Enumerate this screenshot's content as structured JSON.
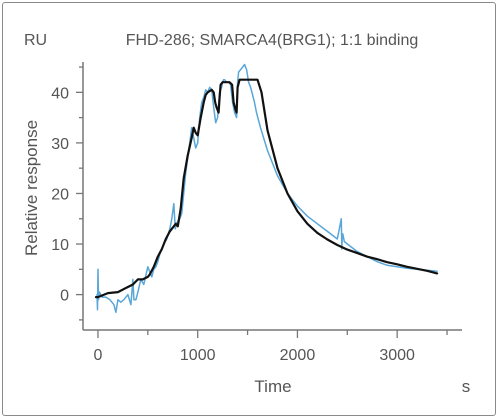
{
  "chart_data": {
    "type": "line",
    "title": "FHD-286; SMARCA4(BRG1); 1:1 binding",
    "y_unit": "RU",
    "x_unit": "s",
    "xlabel": "Time",
    "ylabel": "Relative response",
    "xlim": [
      -150,
      3650
    ],
    "ylim": [
      -7,
      46
    ],
    "x_ticks": [
      0,
      1000,
      2000,
      3000
    ],
    "y_ticks": [
      0,
      10,
      20,
      30,
      40
    ],
    "grid": false,
    "legend": "none",
    "colors": {
      "fit": "#111111",
      "measured": "#5aa6d8",
      "axis": "#777777",
      "text": "#555555"
    },
    "series": [
      {
        "style": "measured",
        "x": [
          -10,
          -5,
          0,
          5,
          15,
          40,
          80,
          120,
          160,
          180,
          200,
          230,
          260,
          300,
          330,
          350,
          360,
          380,
          400,
          430,
          460,
          500,
          540,
          560,
          580,
          600,
          620,
          640,
          660,
          690,
          720,
          740,
          760,
          775,
          785,
          800,
          820,
          840,
          860,
          880,
          900,
          920,
          940,
          960,
          980,
          1000,
          1020,
          1040,
          1060,
          1080,
          1100,
          1120,
          1140,
          1160,
          1180,
          1200,
          1220,
          1240,
          1250,
          1260,
          1270,
          1290,
          1310,
          1330,
          1350,
          1370,
          1390,
          1400,
          1410,
          1430,
          1450,
          1470,
          1490,
          1510,
          1530,
          1550,
          1570,
          1590,
          1610,
          1630,
          1700,
          1800,
          1900,
          2000,
          2100,
          2200,
          2300,
          2400,
          2440,
          2445,
          2450,
          2455,
          2470,
          2500,
          2600,
          2700,
          2800,
          2900,
          3000,
          3100,
          3200,
          3300,
          3400
        ],
        "y": [
          0,
          -3,
          5,
          -1,
          0.5,
          -0.5,
          -0.5,
          -1,
          -2,
          -3.5,
          -1,
          -1.5,
          -1,
          0,
          -2,
          3,
          -1,
          -1,
          0.5,
          3,
          2,
          5.5,
          3.5,
          5,
          5.5,
          6.5,
          8,
          9,
          10,
          11,
          13,
          15,
          18,
          13,
          14,
          14.5,
          15,
          16,
          20,
          24,
          27,
          30,
          33,
          31,
          29,
          30,
          35,
          38,
          39,
          40.5,
          40,
          41,
          40.5,
          37,
          34,
          35,
          40,
          41,
          42,
          42.5,
          42.5,
          42,
          42,
          41.5,
          38,
          36,
          35,
          42,
          44,
          44.5,
          45,
          45.5,
          44.5,
          42,
          41,
          39.5,
          38,
          36,
          34.5,
          33,
          28.5,
          23.5,
          20,
          17.5,
          15.5,
          14,
          12.5,
          11,
          15,
          9,
          11.5,
          12,
          10.5,
          10,
          8.5,
          7.5,
          6.5,
          5.8,
          5.5,
          5.2,
          5,
          4.8,
          4.6
        ]
      },
      {
        "style": "fit",
        "x": [
          -20,
          0,
          100,
          200,
          300,
          350,
          400,
          450,
          500,
          520,
          560,
          600,
          640,
          680,
          720,
          760,
          780,
          800,
          830,
          860,
          900,
          940,
          960,
          980,
          1000,
          1030,
          1060,
          1080,
          1100,
          1140,
          1160,
          1175,
          1190,
          1210,
          1220,
          1230,
          1250,
          1280,
          1320,
          1345,
          1360,
          1380,
          1390,
          1400,
          1420,
          1450,
          1500,
          1550,
          1600,
          1640,
          1700,
          1800,
          1900,
          2000,
          2100,
          2200,
          2300,
          2400,
          2500,
          2600,
          2700,
          2800,
          2900,
          3000,
          3100,
          3200,
          3300,
          3400
        ],
        "y": [
          -0.5,
          -0.5,
          0.3,
          0.5,
          1.5,
          2,
          3,
          3,
          3.5,
          4,
          5.5,
          7.5,
          9,
          11,
          12.5,
          13.5,
          14,
          13.5,
          17,
          23,
          27.5,
          31,
          33,
          32,
          31.5,
          35,
          38,
          39.5,
          40,
          40.5,
          40,
          38,
          37,
          36,
          39,
          41.5,
          42,
          42,
          42,
          41.5,
          38,
          36.5,
          36,
          41,
          42.5,
          42.5,
          42.5,
          42.5,
          42.5,
          40,
          32.5,
          25,
          20,
          16.5,
          14,
          12.2,
          10.9,
          9.8,
          8.9,
          8.2,
          7.5,
          7,
          6.4,
          6,
          5.5,
          5.1,
          4.7,
          4.2
        ]
      }
    ]
  }
}
